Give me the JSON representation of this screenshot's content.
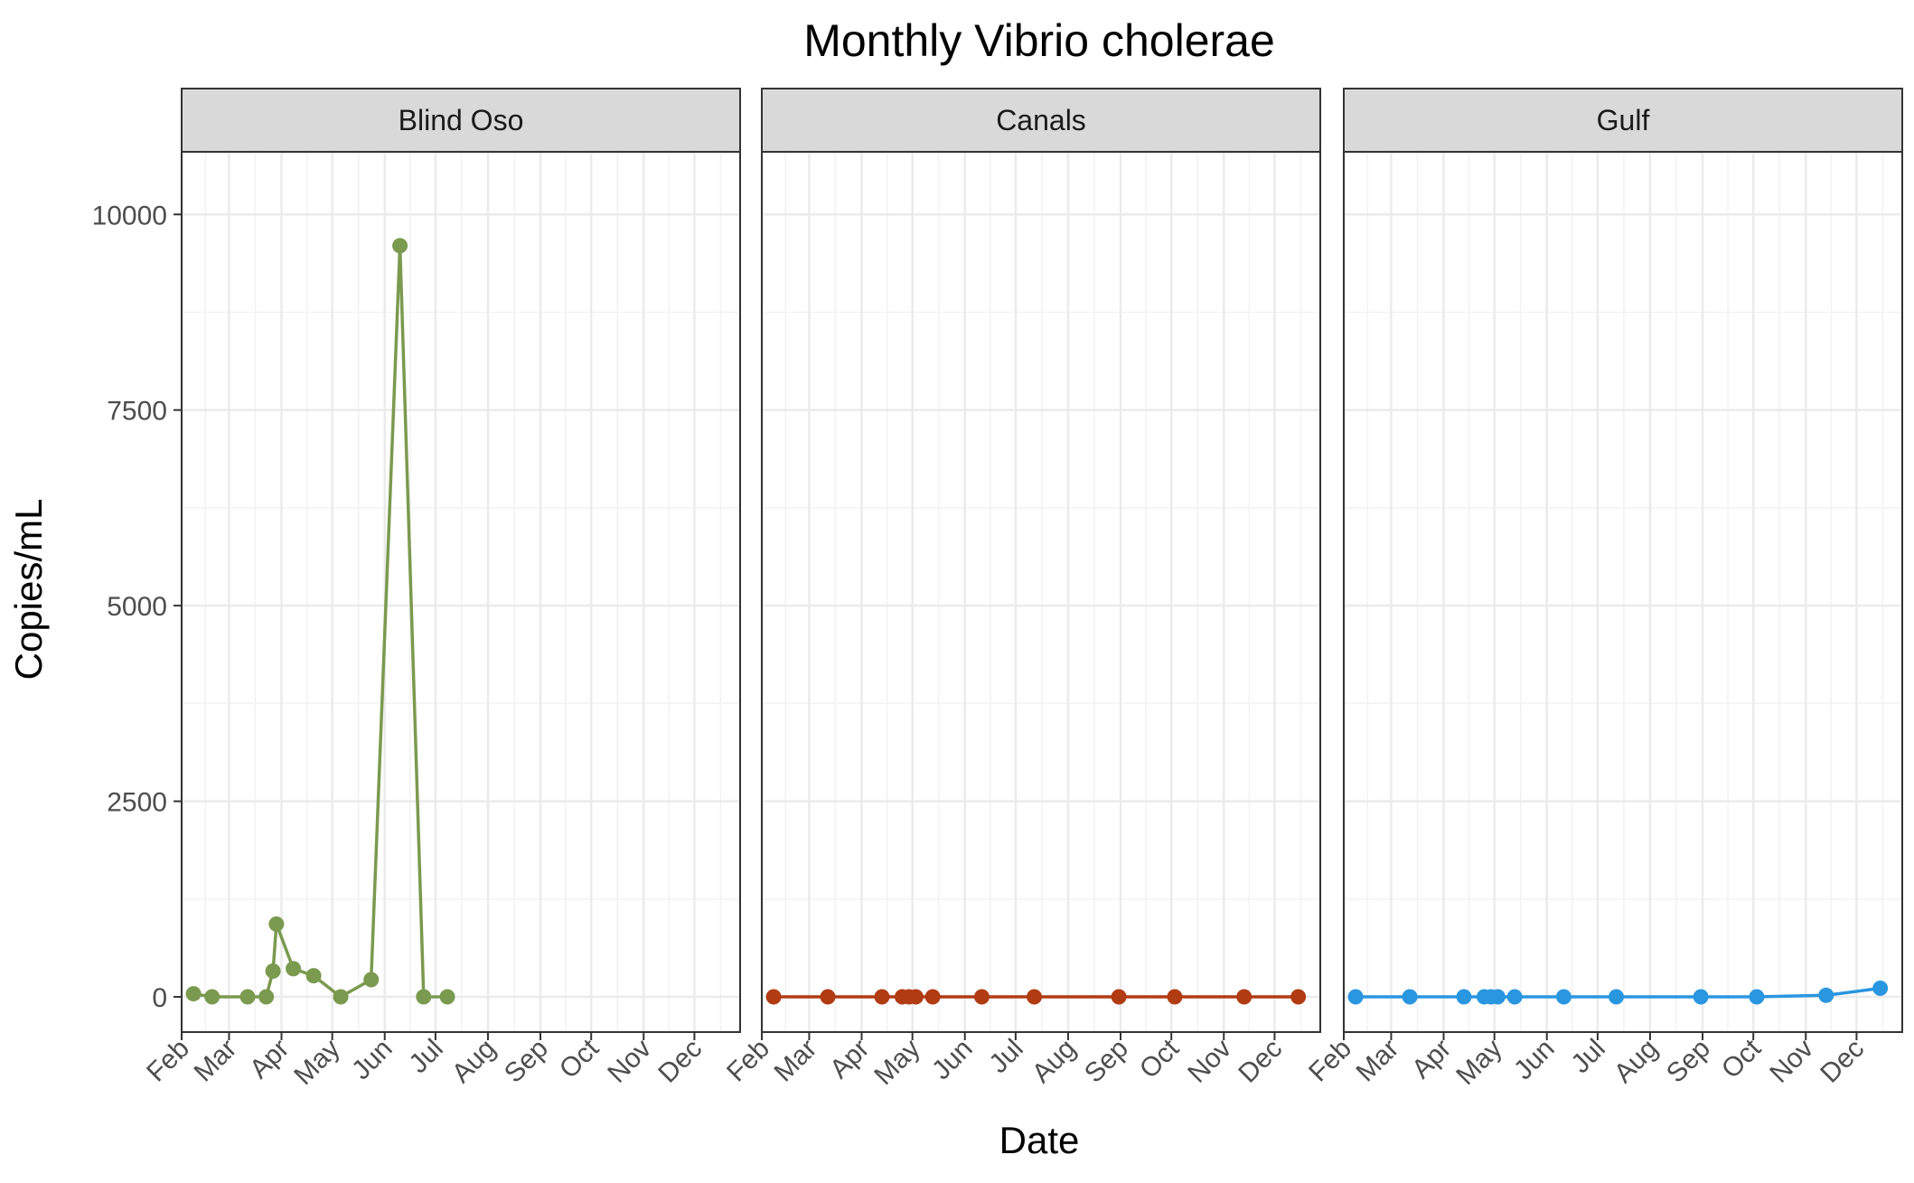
{
  "chart_data": {
    "type": "line",
    "title": "Monthly Vibrio cholerae",
    "xlabel": "Date",
    "ylabel": "Copies/mL",
    "ylim": [
      -450,
      10800
    ],
    "yticks": [
      0,
      2500,
      5000,
      7500,
      10000
    ],
    "grid": true,
    "x_domain": [
      "2019-02-01",
      "2019-12-28"
    ],
    "x_ticks": [
      {
        "date": "2019-02-01",
        "label": "Feb"
      },
      {
        "date": "2019-03-01",
        "label": "Mar"
      },
      {
        "date": "2019-04-01",
        "label": "Apr"
      },
      {
        "date": "2019-05-01",
        "label": "May"
      },
      {
        "date": "2019-06-01",
        "label": "Jun"
      },
      {
        "date": "2019-07-01",
        "label": "Jul"
      },
      {
        "date": "2019-08-01",
        "label": "Aug"
      },
      {
        "date": "2019-09-01",
        "label": "Sep"
      },
      {
        "date": "2019-10-01",
        "label": "Oct"
      },
      {
        "date": "2019-11-01",
        "label": "Nov"
      },
      {
        "date": "2019-12-01",
        "label": "Dec"
      }
    ],
    "panels": [
      {
        "label": "Blind Oso",
        "color": "#7a9a4f",
        "points": [
          {
            "x": "2019-02-08",
            "y": 40
          },
          {
            "x": "2019-02-19",
            "y": 0
          },
          {
            "x": "2019-03-12",
            "y": 0
          },
          {
            "x": "2019-03-23",
            "y": 0
          },
          {
            "x": "2019-03-27",
            "y": 330
          },
          {
            "x": "2019-03-29",
            "y": 930
          },
          {
            "x": "2019-04-08",
            "y": 360
          },
          {
            "x": "2019-04-20",
            "y": 270
          },
          {
            "x": "2019-05-06",
            "y": 0
          },
          {
            "x": "2019-05-24",
            "y": 220
          },
          {
            "x": "2019-06-10",
            "y": 9600
          },
          {
            "x": "2019-06-24",
            "y": 0
          },
          {
            "x": "2019-07-08",
            "y": 0
          }
        ]
      },
      {
        "label": "Canals",
        "color": "#b13b12",
        "points": [
          {
            "x": "2019-02-08",
            "y": 0
          },
          {
            "x": "2019-03-12",
            "y": 0
          },
          {
            "x": "2019-04-13",
            "y": 0
          },
          {
            "x": "2019-04-25",
            "y": 0
          },
          {
            "x": "2019-04-29",
            "y": 0
          },
          {
            "x": "2019-05-03",
            "y": 0
          },
          {
            "x": "2019-05-13",
            "y": 0
          },
          {
            "x": "2019-06-11",
            "y": 0
          },
          {
            "x": "2019-07-12",
            "y": 0
          },
          {
            "x": "2019-08-31",
            "y": 0
          },
          {
            "x": "2019-10-03",
            "y": 0
          },
          {
            "x": "2019-11-13",
            "y": 0
          },
          {
            "x": "2019-12-15",
            "y": 0
          }
        ]
      },
      {
        "label": "Gulf",
        "color": "#2a96e0",
        "points": [
          {
            "x": "2019-02-08",
            "y": 0
          },
          {
            "x": "2019-03-12",
            "y": 0
          },
          {
            "x": "2019-04-13",
            "y": 0
          },
          {
            "x": "2019-04-25",
            "y": 0
          },
          {
            "x": "2019-04-29",
            "y": 0
          },
          {
            "x": "2019-05-03",
            "y": 0
          },
          {
            "x": "2019-05-13",
            "y": 0
          },
          {
            "x": "2019-06-11",
            "y": 0
          },
          {
            "x": "2019-07-12",
            "y": 0
          },
          {
            "x": "2019-08-31",
            "y": 0
          },
          {
            "x": "2019-10-03",
            "y": 0
          },
          {
            "x": "2019-11-13",
            "y": 20
          },
          {
            "x": "2019-12-15",
            "y": 110
          }
        ]
      }
    ]
  }
}
